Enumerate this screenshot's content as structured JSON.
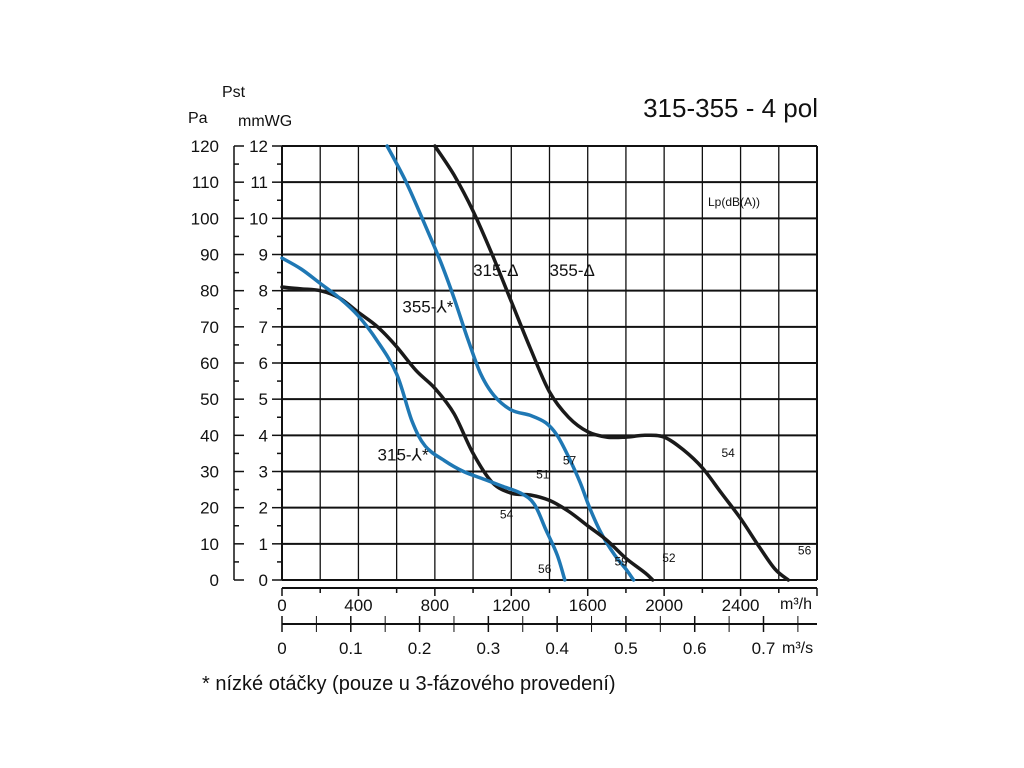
{
  "chart_data": {
    "type": "line",
    "title": "315-355 - 4 pol",
    "y_title": "Pst",
    "y_units": [
      "Pa",
      "mmWG"
    ],
    "x_units": [
      "m³/h",
      "m³/s"
    ],
    "xlim": [
      0,
      2800
    ],
    "ylim": [
      0,
      120
    ],
    "grid": true,
    "x_ticks_m3h": [
      "0",
      "400",
      "800",
      "1200",
      "1600",
      "2000",
      "2400"
    ],
    "x_ticks_m3s": [
      "0",
      "0.1",
      "0.2",
      "0.3",
      "0.4",
      "0.5",
      "0.6",
      "0.7"
    ],
    "y_ticks_pa": [
      "0",
      "10",
      "20",
      "30",
      "40",
      "50",
      "60",
      "70",
      "80",
      "90",
      "100",
      "110",
      "120"
    ],
    "y_ticks_mmwg": [
      "0",
      "1",
      "2",
      "3",
      "4",
      "5",
      "6",
      "7",
      "8",
      "9",
      "10",
      "11",
      "12"
    ],
    "noise_label": "Lp(dB(A))",
    "footnote": "* nízké otáčky (pouze u 3-fázového provedení)",
    "series": [
      {
        "name": "355-Δ",
        "color": "#1a1a1a",
        "label": {
          "x": 1400,
          "y": 84
        },
        "points": [
          [
            800,
            120
          ],
          [
            900,
            112
          ],
          [
            1000,
            102
          ],
          [
            1100,
            90
          ],
          [
            1200,
            77
          ],
          [
            1300,
            64
          ],
          [
            1400,
            52
          ],
          [
            1500,
            45
          ],
          [
            1600,
            41
          ],
          [
            1700,
            39.5
          ],
          [
            1800,
            39.5
          ],
          [
            1900,
            40
          ],
          [
            2000,
            39.5
          ],
          [
            2100,
            36
          ],
          [
            2200,
            31
          ],
          [
            2300,
            24
          ],
          [
            2400,
            17
          ],
          [
            2500,
            9
          ],
          [
            2580,
            3
          ],
          [
            2650,
            0
          ]
        ],
        "noise": [
          {
            "text": "54",
            "x": 2300,
            "y": 34
          },
          {
            "text": "56",
            "x": 2700,
            "y": 7
          }
        ]
      },
      {
        "name": "315-Δ",
        "color": "#1f78b4",
        "label": {
          "x": 1000,
          "y": 84
        },
        "points": [
          [
            550,
            120
          ],
          [
            650,
            110
          ],
          [
            750,
            98
          ],
          [
            830,
            88
          ],
          [
            900,
            78
          ],
          [
            970,
            67
          ],
          [
            1040,
            57
          ],
          [
            1110,
            51
          ],
          [
            1200,
            47
          ],
          [
            1300,
            45.5
          ],
          [
            1380,
            43.5
          ],
          [
            1440,
            40
          ],
          [
            1500,
            34
          ],
          [
            1560,
            27
          ],
          [
            1610,
            20
          ],
          [
            1670,
            13
          ],
          [
            1740,
            7
          ],
          [
            1800,
            3
          ],
          [
            1840,
            0
          ]
        ],
        "noise": [
          {
            "text": "57",
            "x": 1470,
            "y": 32
          },
          {
            "text": "59",
            "x": 1740,
            "y": 4
          }
        ]
      },
      {
        "name": "355-⅄*",
        "color": "#1a1a1a",
        "label": {
          "x": 630,
          "y": 74
        },
        "points": [
          [
            0,
            81
          ],
          [
            100,
            80.5
          ],
          [
            200,
            80
          ],
          [
            300,
            78
          ],
          [
            400,
            74
          ],
          [
            500,
            70
          ],
          [
            600,
            64.5
          ],
          [
            700,
            58
          ],
          [
            800,
            53
          ],
          [
            900,
            46
          ],
          [
            1000,
            35
          ],
          [
            1100,
            27
          ],
          [
            1200,
            24
          ],
          [
            1300,
            23.5
          ],
          [
            1400,
            22
          ],
          [
            1500,
            19
          ],
          [
            1600,
            15
          ],
          [
            1700,
            11
          ],
          [
            1800,
            6
          ],
          [
            1900,
            2
          ],
          [
            1940,
            0
          ]
        ],
        "noise": [
          {
            "text": "51",
            "x": 1330,
            "y": 28
          },
          {
            "text": "52",
            "x": 1990,
            "y": 5
          }
        ]
      },
      {
        "name": "315-⅄*",
        "color": "#1f78b4",
        "label": {
          "x": 500,
          "y": 33
        },
        "points": [
          [
            0,
            89
          ],
          [
            100,
            86
          ],
          [
            200,
            82
          ],
          [
            300,
            78
          ],
          [
            400,
            73
          ],
          [
            500,
            66
          ],
          [
            600,
            57
          ],
          [
            680,
            44
          ],
          [
            750,
            37
          ],
          [
            850,
            33
          ],
          [
            950,
            30
          ],
          [
            1050,
            28
          ],
          [
            1150,
            26
          ],
          [
            1250,
            24
          ],
          [
            1320,
            21
          ],
          [
            1380,
            14
          ],
          [
            1440,
            7
          ],
          [
            1480,
            0
          ]
        ],
        "noise": [
          {
            "text": "54",
            "x": 1140,
            "y": 17
          },
          {
            "text": "56",
            "x": 1340,
            "y": 2
          }
        ]
      }
    ]
  }
}
